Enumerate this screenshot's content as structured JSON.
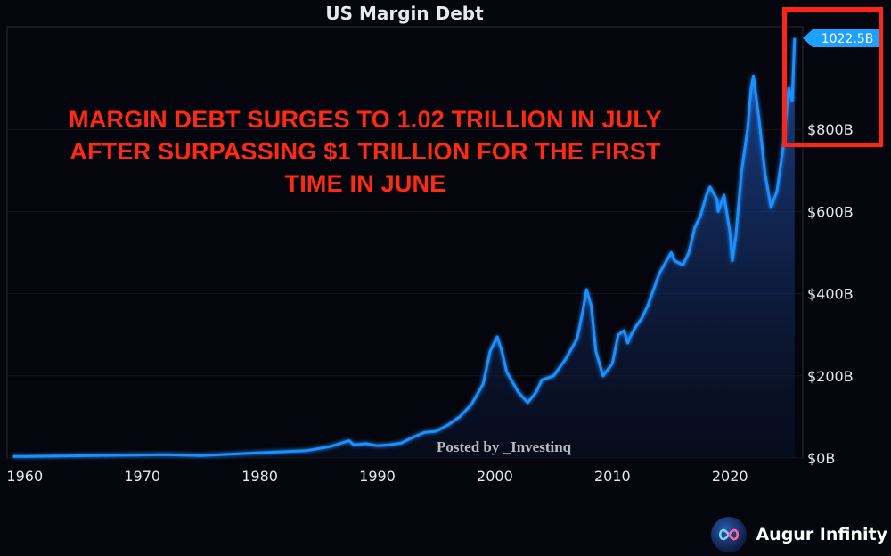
{
  "chart_data": {
    "type": "area",
    "title": "US Margin Debt",
    "xlabel": "",
    "ylabel": "",
    "xlim": [
      1958.5,
      2026.2
    ],
    "ylim": [
      0,
      1050
    ],
    "x_ticks": [
      "1960",
      "1970",
      "1980",
      "1990",
      "2000",
      "2010",
      "2020"
    ],
    "y_ticks": [
      "$0B",
      "$200B",
      "$400B",
      "$600B",
      "$800B"
    ],
    "latest_label": "1022.5B",
    "series": [
      {
        "color": "#1e90ff",
        "x": [
          1959,
          1960,
          1963,
          1966,
          1969,
          1972,
          1975,
          1978,
          1981,
          1984,
          1986,
          1987.6,
          1988,
          1989,
          1990,
          1991,
          1992,
          1993,
          1994,
          1995,
          1996,
          1997,
          1998,
          1999,
          1999.6,
          2000.2,
          2000.6,
          2001,
          2002,
          2002.8,
          2003.5,
          2004,
          2005,
          2006,
          2007,
          2007.5,
          2007.8,
          2008.2,
          2008.6,
          2009,
          2009.2,
          2010,
          2010.5,
          2011,
          2011.3,
          2011.6,
          2012,
          2012.5,
          2013,
          2014,
          2014.6,
          2015,
          2015.3,
          2016,
          2016.5,
          2017,
          2017.5,
          2018,
          2018.3,
          2018.9,
          2019,
          2019.5,
          2020,
          2020.2,
          2020.5,
          2021,
          2021.5,
          2021.8,
          2022,
          2022.5,
          2023,
          2023.5,
          2024,
          2024.5,
          2025,
          2025.3,
          2025.5
        ],
        "values": [
          4,
          4,
          5,
          6,
          7,
          8,
          6,
          10,
          14,
          18,
          28,
          42,
          32,
          35,
          30,
          32,
          36,
          50,
          62,
          65,
          80,
          100,
          130,
          180,
          260,
          295,
          260,
          210,
          160,
          135,
          160,
          190,
          200,
          240,
          290,
          360,
          410,
          370,
          260,
          220,
          200,
          230,
          300,
          310,
          280,
          300,
          320,
          340,
          370,
          450,
          480,
          500,
          480,
          470,
          500,
          560,
          590,
          640,
          660,
          630,
          600,
          640,
          550,
          480,
          540,
          700,
          800,
          900,
          930,
          820,
          690,
          610,
          650,
          750,
          900,
          870,
          1022.5
        ]
      }
    ]
  },
  "annotation": {
    "lines": [
      "MARGIN DEBT SURGES TO 1.02 TRILLION IN JULY",
      "AFTER SURPASSING $1 TRILLION FOR THE FIRST",
      "TIME IN JUNE"
    ]
  },
  "watermark": "Posted by _Investinq",
  "brand": {
    "name": "Augur Infinity",
    "icon": "infinity-icon"
  },
  "colors": {
    "background": "#05050d",
    "line": "#1e90ff",
    "highlight": "#ff2418",
    "annotation": "#ff2a12"
  }
}
